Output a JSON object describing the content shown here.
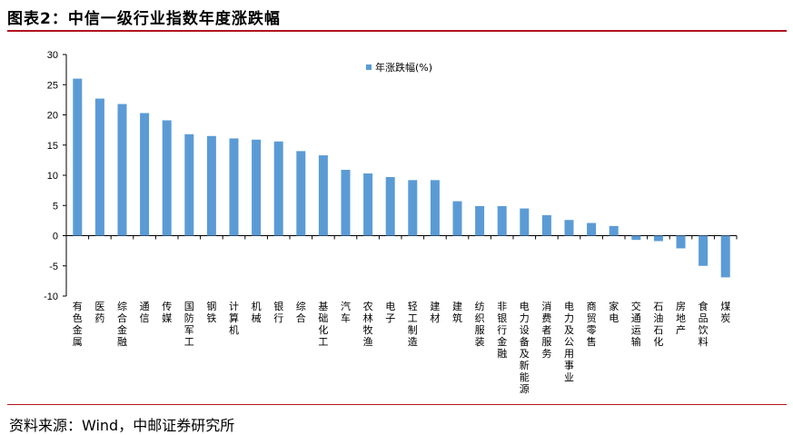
{
  "header": {
    "title": "图表2：中信一级行业指数年度涨跌幅"
  },
  "footer": {
    "source": "资料来源：Wind，中邮证券研究所"
  },
  "colors": {
    "bar": "#5b9bd5",
    "rule": "#b3121f"
  },
  "chart_data": {
    "type": "bar",
    "title": "",
    "xlabel": "",
    "ylabel": "",
    "ylim": [
      -10,
      30
    ],
    "yticks": [
      30,
      25,
      20,
      15,
      10,
      5,
      0,
      -5,
      -10
    ],
    "grid": false,
    "legend": "top-center",
    "categories": [
      "有色金属",
      "医药",
      "综合金融",
      "通信",
      "传媒",
      "国防军工",
      "钢铁",
      "计算机",
      "机械",
      "银行",
      "综合",
      "基础化工",
      "汽车",
      "农林牧渔",
      "电子",
      "轻工制造",
      "建材",
      "建筑",
      "纺织服装",
      "非银行金融",
      "电力设备及新能源",
      "消费者服务",
      "电力及公用事业",
      "商贸零售",
      "家电",
      "交通运输",
      "石油石化",
      "房地产",
      "食品饮料",
      "煤炭"
    ],
    "series": [
      {
        "name": "年涨跌幅(%)",
        "values": [
          26.0,
          22.7,
          21.8,
          20.3,
          19.1,
          16.8,
          16.5,
          16.1,
          15.9,
          15.6,
          14.0,
          13.3,
          10.9,
          10.3,
          9.7,
          9.2,
          9.2,
          5.7,
          4.9,
          4.9,
          4.5,
          3.4,
          2.6,
          2.1,
          1.6,
          -0.7,
          -0.9,
          -2.1,
          -5.0,
          -6.9
        ]
      }
    ]
  }
}
